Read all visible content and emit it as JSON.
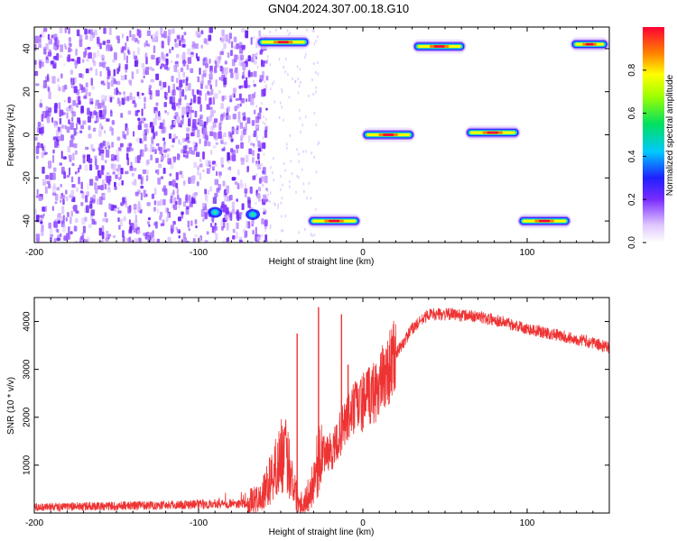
{
  "title": "GN04.2024.307.00.18.G10",
  "chart_data": [
    {
      "type": "heatmap",
      "xlabel": "Height of straight line (km)",
      "ylabel": "Frequency (Hz)",
      "xlim": [
        -200,
        150
      ],
      "ylim": [
        -50,
        50
      ],
      "xticks": [
        -200,
        -100,
        0,
        100
      ],
      "yticks": [
        -40,
        -20,
        0,
        20,
        40
      ],
      "colorbar": {
        "label": "Normalized spectral amplitude",
        "range": [
          0,
          1
        ],
        "ticks": [
          "0.0",
          "0.2",
          "0.4",
          "0.6",
          "0.8"
        ],
        "tick_values": [
          0,
          0.2,
          0.4,
          0.6,
          0.8
        ]
      },
      "noise_region": {
        "x_start": -200,
        "x_end": -67
      },
      "tones": [
        {
          "x0": -65,
          "x1": -32,
          "freq": 43
        },
        {
          "x0": 30,
          "x1": 63,
          "freq": 41
        },
        {
          "x0": 126,
          "x1": 150,
          "freq": 42
        },
        {
          "x0": -1,
          "x1": 32,
          "freq": 0
        },
        {
          "x0": 62,
          "x1": 96,
          "freq": 1
        },
        {
          "x0": -34,
          "x1": -1,
          "freq": -40
        },
        {
          "x0": 94,
          "x1": 127,
          "freq": -40
        }
      ],
      "blobs": [
        {
          "x": -90,
          "freq": -36
        },
        {
          "x": -67,
          "freq": -37
        }
      ]
    },
    {
      "type": "line",
      "xlabel": "Height of straight line (km)",
      "ylabel": "SNR (10 * v/v)",
      "xlim": [
        -200,
        150
      ],
      "ylim": [
        0,
        4500
      ],
      "xticks": [
        -200,
        -100,
        0,
        100
      ],
      "yticks": [
        1000,
        2000,
        3000,
        4000
      ],
      "color": "#ee3333",
      "profile": [
        {
          "x": -200,
          "y": 120
        },
        {
          "x": -150,
          "y": 150
        },
        {
          "x": -100,
          "y": 180
        },
        {
          "x": -72,
          "y": 200
        },
        {
          "x": -62,
          "y": 300
        },
        {
          "x": -55,
          "y": 800
        },
        {
          "x": -48,
          "y": 1300
        },
        {
          "x": -44,
          "y": 900
        },
        {
          "x": -40,
          "y": 300
        },
        {
          "x": -36,
          "y": 200
        },
        {
          "x": -32,
          "y": 450
        },
        {
          "x": -28,
          "y": 1000
        },
        {
          "x": -24,
          "y": 1250
        },
        {
          "x": -18,
          "y": 1300
        },
        {
          "x": -12,
          "y": 1800
        },
        {
          "x": -5,
          "y": 2200
        },
        {
          "x": 0,
          "y": 2300
        },
        {
          "x": 10,
          "y": 2650
        },
        {
          "x": 20,
          "y": 3300
        },
        {
          "x": 30,
          "y": 3850
        },
        {
          "x": 40,
          "y": 4150
        },
        {
          "x": 55,
          "y": 4150
        },
        {
          "x": 70,
          "y": 4100
        },
        {
          "x": 85,
          "y": 4000
        },
        {
          "x": 100,
          "y": 3850
        },
        {
          "x": 120,
          "y": 3700
        },
        {
          "x": 135,
          "y": 3600
        },
        {
          "x": 150,
          "y": 3450
        }
      ],
      "spikes": [
        {
          "x": -40,
          "y": 3750
        },
        {
          "x": -27,
          "y": 4300
        },
        {
          "x": -13,
          "y": 4150
        },
        {
          "x": -9,
          "y": 3100
        }
      ]
    }
  ]
}
